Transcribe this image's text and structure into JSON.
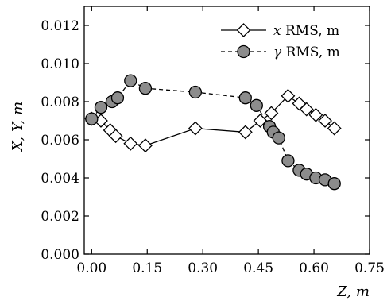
{
  "chart_data": {
    "type": "line",
    "xlabel": "Z, m",
    "ylabel": "X, Y, m",
    "xlim": [
      -0.02,
      0.75
    ],
    "ylim": [
      0.0,
      0.013
    ],
    "x_ticks": [
      "0.00",
      "0.15",
      "0.30",
      "0.45",
      "0.60",
      "0.75"
    ],
    "y_ticks": [
      "0.000",
      "0.002",
      "0.004",
      "0.006",
      "0.008",
      "0.010",
      "0.012"
    ],
    "legend_position": "top-right",
    "grid": false,
    "series": [
      {
        "name_symbol": "x",
        "name_rest": " RMS, m",
        "marker": "diamond",
        "line_style": "solid",
        "color": "#000000",
        "fill": "#ffffff",
        "points": [
          [
            0.0,
            0.0071
          ],
          [
            0.025,
            0.007
          ],
          [
            0.05,
            0.0065
          ],
          [
            0.065,
            0.0062
          ],
          [
            0.105,
            0.0058
          ],
          [
            0.145,
            0.0057
          ],
          [
            0.28,
            0.0066
          ],
          [
            0.415,
            0.0064
          ],
          [
            0.455,
            0.007
          ],
          [
            0.485,
            0.0074
          ],
          [
            0.53,
            0.0083
          ],
          [
            0.56,
            0.0079
          ],
          [
            0.58,
            0.0076
          ],
          [
            0.605,
            0.0073
          ],
          [
            0.63,
            0.007
          ],
          [
            0.655,
            0.0066
          ]
        ]
      },
      {
        "name_symbol": "γ",
        "name_rest": " RMS, m",
        "marker": "circle",
        "line_style": "dashed",
        "color": "#000000",
        "fill": "#8c8c8c",
        "points": [
          [
            0.0,
            0.0071
          ],
          [
            0.025,
            0.0077
          ],
          [
            0.055,
            0.008
          ],
          [
            0.07,
            0.0082
          ],
          [
            0.105,
            0.0091
          ],
          [
            0.145,
            0.0087
          ],
          [
            0.28,
            0.0085
          ],
          [
            0.415,
            0.0082
          ],
          [
            0.445,
            0.0078
          ],
          [
            0.48,
            0.0067
          ],
          [
            0.49,
            0.0064
          ],
          [
            0.505,
            0.0061
          ],
          [
            0.53,
            0.0049
          ],
          [
            0.56,
            0.0044
          ],
          [
            0.58,
            0.0042
          ],
          [
            0.605,
            0.004
          ],
          [
            0.63,
            0.0039
          ],
          [
            0.655,
            0.0037
          ]
        ]
      }
    ]
  }
}
